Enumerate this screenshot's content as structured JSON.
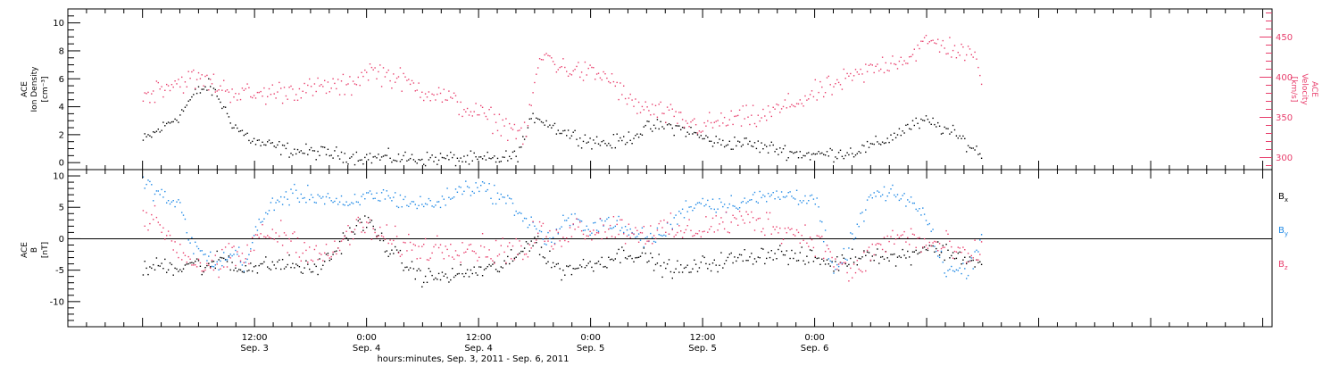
{
  "chart_data": [
    {
      "type": "scatter",
      "panel": "top",
      "ylabel_left": [
        "ACE",
        "Ion Density",
        "[cm⁻³]"
      ],
      "ylabel_right": [
        "ACE",
        "Velocity",
        "[km/s]"
      ],
      "ylim_left": [
        -0.5,
        11
      ],
      "ylim_right": [
        285,
        485
      ],
      "yticks_left": [
        0,
        2,
        4,
        6,
        8,
        10
      ],
      "yticks_right": [
        300,
        350,
        400,
        450
      ],
      "x_hours": [
        0,
        2,
        4,
        5,
        6,
        7,
        8,
        9,
        10,
        11,
        12,
        14,
        16,
        18,
        20,
        22,
        24,
        26,
        28,
        30,
        32,
        34,
        36,
        38,
        40,
        41,
        42,
        43,
        44,
        45,
        46,
        48,
        50,
        52,
        54,
        56,
        58,
        60,
        62,
        64,
        66,
        68,
        70,
        72,
        74,
        76,
        78,
        80,
        82,
        84,
        86,
        88,
        89,
        90
      ],
      "series": [
        {
          "key": "density",
          "color": "#000000",
          "y": [
            1.6,
            2.5,
            3.5,
            4.5,
            5.2,
            5.5,
            4.8,
            3.5,
            2.5,
            2.0,
            1.5,
            1.2,
            0.9,
            0.8,
            0.7,
            0.5,
            0.4,
            0.4,
            0.35,
            0.3,
            0.35,
            0.3,
            0.25,
            0.3,
            0.5,
            2.0,
            3.5,
            3.0,
            2.6,
            2.3,
            2.0,
            1.6,
            1.4,
            1.8,
            2.5,
            2.7,
            2.4,
            1.8,
            1.4,
            1.5,
            1.2,
            1.0,
            0.7,
            0.6,
            0.7,
            0.8,
            1.2,
            1.8,
            2.6,
            3.0,
            2.4,
            1.6,
            1.0,
            0.6
          ],
          "scatter": 0.5
        },
        {
          "key": "velocity",
          "color": "#e83e6c",
          "axis": "right",
          "y": [
            375,
            390,
            395,
            398,
            398,
            395,
            390,
            385,
            382,
            380,
            378,
            382,
            385,
            385,
            390,
            388,
            410,
            405,
            395,
            385,
            378,
            365,
            355,
            345,
            335,
            325,
            400,
            430,
            420,
            412,
            410,
            405,
            400,
            370,
            360,
            355,
            345,
            340,
            345,
            350,
            350,
            360,
            370,
            380,
            390,
            400,
            410,
            420,
            425,
            445,
            440,
            430,
            425,
            400
          ],
          "scatter": 14
        }
      ]
    },
    {
      "type": "scatter",
      "panel": "bottom",
      "ylabel_left": [
        "ACE",
        "B",
        "[nT]"
      ],
      "ylim": [
        -14,
        11
      ],
      "yticks": [
        -10,
        -5,
        0,
        5,
        10
      ],
      "x_hours": [
        0,
        2,
        4,
        5,
        6,
        7,
        8,
        9,
        10,
        11,
        12,
        14,
        16,
        18,
        20,
        22,
        24,
        26,
        28,
        30,
        32,
        34,
        36,
        38,
        40,
        41,
        42,
        43,
        44,
        45,
        46,
        48,
        50,
        52,
        54,
        56,
        58,
        60,
        62,
        64,
        66,
        68,
        70,
        72,
        74,
        76,
        78,
        80,
        82,
        84,
        86,
        88,
        89,
        90
      ],
      "series": [
        {
          "key": "Bx",
          "label": "Bx",
          "color": "#000000",
          "y": [
            -5,
            -4,
            -4.5,
            -3.5,
            -4,
            -5,
            -3,
            -3,
            -5,
            -4,
            -4.5,
            -4,
            -4,
            -5,
            -3,
            1,
            3,
            -1,
            -4,
            -6,
            -6,
            -5.5,
            -5,
            -4.5,
            -3,
            -1,
            0.5,
            -3,
            -4,
            -5,
            -4.5,
            -4,
            -3,
            -2,
            -3,
            -4.5,
            -5,
            -4,
            -3.5,
            -3,
            -2.5,
            -2,
            -3,
            -3,
            -4,
            -3,
            -2,
            -3,
            -2.5,
            -1,
            -2,
            -3,
            -3.5,
            -4.5
          ],
          "scatter": 1.4
        },
        {
          "key": "By",
          "label": "By",
          "color": "#1e88e5",
          "y": [
            9,
            7,
            5,
            0,
            -2,
            -3,
            -4,
            -3,
            -2,
            -4,
            1,
            6,
            7,
            7,
            6.5,
            5,
            7,
            7,
            6,
            5.5,
            6,
            8,
            8.5,
            7,
            5,
            3,
            2,
            0,
            0,
            2.5,
            3,
            2,
            3,
            1,
            0,
            1,
            5,
            6,
            5.5,
            6,
            6.5,
            7,
            7,
            6.5,
            -6,
            0,
            7,
            7,
            6.5,
            3,
            -5,
            -5,
            -3,
            2
          ],
          "scatter": 1.4
        },
        {
          "key": "Bz",
          "label": "Bz",
          "color": "#e83e6c",
          "y": [
            4,
            2,
            -2,
            -3,
            -4,
            -4,
            -5,
            -3,
            -3,
            -3,
            0,
            1,
            0,
            -2,
            -3,
            1,
            2,
            0,
            -1,
            -1.5,
            -1.2,
            -1,
            -1.5,
            -2,
            -1,
            -3,
            1,
            1,
            -1,
            1,
            2,
            1.5,
            2,
            1.5,
            1,
            1.5,
            1,
            2,
            2.5,
            3,
            3,
            2,
            1,
            0,
            -3,
            -6,
            -2,
            0,
            0.5,
            -1,
            -1,
            -3,
            -3,
            -1
          ],
          "scatter": 2.2
        }
      ],
      "legend_placement": "right"
    }
  ],
  "time_axis": {
    "tick_labels": [
      {
        "time": "12:00",
        "date": "Sep. 3"
      },
      {
        "time": "0:00",
        "date": "Sep. 4"
      },
      {
        "time": "12:00",
        "date": "Sep. 4"
      },
      {
        "time": "0:00",
        "date": "Sep. 5"
      },
      {
        "time": "12:00",
        "date": "Sep. 5"
      },
      {
        "time": "0:00",
        "date": "Sep. 6"
      }
    ],
    "xlabel": "hours:minutes, Sep.  3, 2011 - Sep.  6, 2011"
  },
  "legend": {
    "bx_main": "B",
    "bx_sub": "x",
    "by_main": "B",
    "by_sub": "y",
    "bz_main": "B",
    "bz_sub": "z"
  }
}
